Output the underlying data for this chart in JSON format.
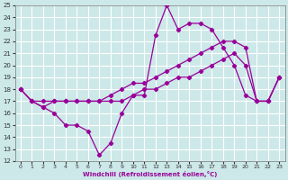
{
  "xlabel": "Windchill (Refroidissement éolien,°C)",
  "bg_color": "#cce8e8",
  "grid_color": "#ffffff",
  "line_color": "#990099",
  "xlim": [
    -0.5,
    23.5
  ],
  "ylim": [
    12,
    25
  ],
  "xticks": [
    0,
    1,
    2,
    3,
    4,
    5,
    6,
    7,
    8,
    9,
    10,
    11,
    12,
    13,
    14,
    15,
    16,
    17,
    18,
    19,
    20,
    21,
    22,
    23
  ],
  "yticks": [
    12,
    13,
    14,
    15,
    16,
    17,
    18,
    19,
    20,
    21,
    22,
    23,
    24,
    25
  ],
  "line1_x": [
    0,
    1,
    2,
    3,
    4,
    5,
    6,
    7,
    8,
    9,
    10,
    11,
    12,
    13,
    14,
    15,
    16,
    17,
    18,
    19,
    20,
    21,
    22,
    23
  ],
  "line1_y": [
    18,
    17,
    16.5,
    16.0,
    15.0,
    15.0,
    14.5,
    12.5,
    13.5,
    16.0,
    17.5,
    17.5,
    22.5,
    25.0,
    23.0,
    23.5,
    23.5,
    23.0,
    21.5,
    20.0,
    17.5,
    17.0,
    17.0,
    19.0
  ],
  "line2_x": [
    0,
    1,
    2,
    3,
    4,
    5,
    6,
    7,
    8,
    9,
    10,
    11,
    12,
    13,
    14,
    15,
    16,
    17,
    18,
    19,
    20,
    21,
    22,
    23
  ],
  "line2_y": [
    18.0,
    17.0,
    17.0,
    17.0,
    17.0,
    17.0,
    17.0,
    17.0,
    17.5,
    18.0,
    18.5,
    18.5,
    19.0,
    19.5,
    20.0,
    20.5,
    21.0,
    21.5,
    22.0,
    22.0,
    21.5,
    17.0,
    17.0,
    19.0
  ],
  "line3_x": [
    0,
    1,
    2,
    3,
    4,
    5,
    6,
    7,
    8,
    9,
    10,
    11,
    12,
    13,
    14,
    15,
    16,
    17,
    18,
    19,
    20,
    21,
    22,
    23
  ],
  "line3_y": [
    18.0,
    17.0,
    16.5,
    17.0,
    17.0,
    17.0,
    17.0,
    17.0,
    17.0,
    17.0,
    17.5,
    18.0,
    18.0,
    18.5,
    19.0,
    19.0,
    19.5,
    20.0,
    20.5,
    21.0,
    20.0,
    17.0,
    17.0,
    19.0
  ]
}
